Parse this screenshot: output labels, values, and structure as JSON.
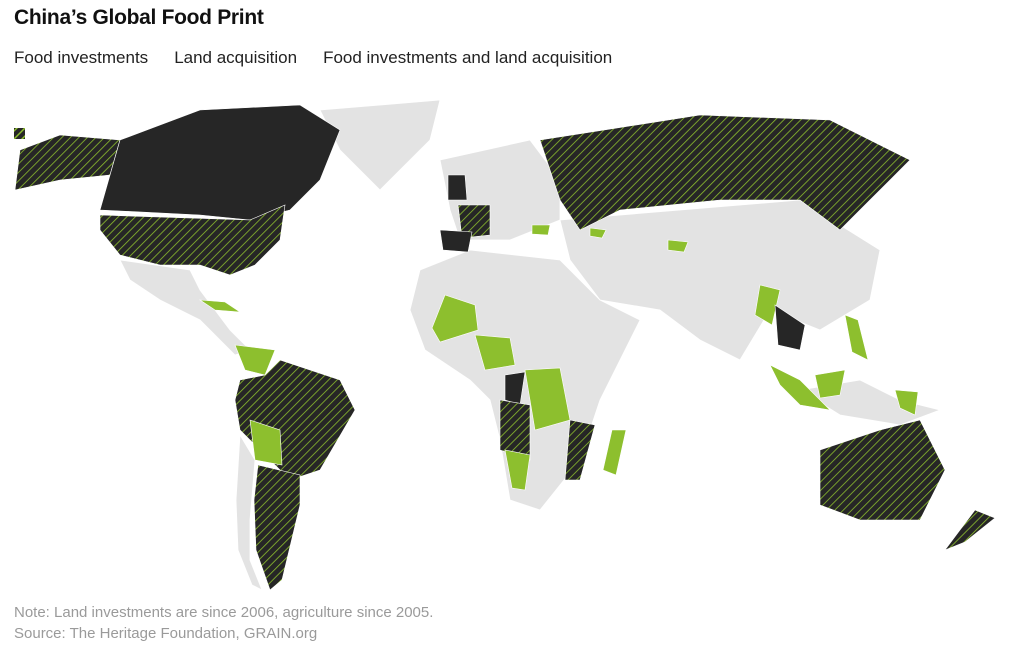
{
  "title": "China’s Global Food Print",
  "legend": [
    {
      "label": "Food investments",
      "color": "#262626"
    },
    {
      "label": "Land acquisition",
      "color": "#8dbf2e"
    },
    {
      "label": "Food investments and land acquisition",
      "color": "#262626",
      "stripe_color": "#8dbf2e"
    }
  ],
  "notes": [
    "Note: Land investments are since 2006, agriculture since 2005.",
    "Source: The Heritage Foundation, GRAIN.org"
  ]
}
